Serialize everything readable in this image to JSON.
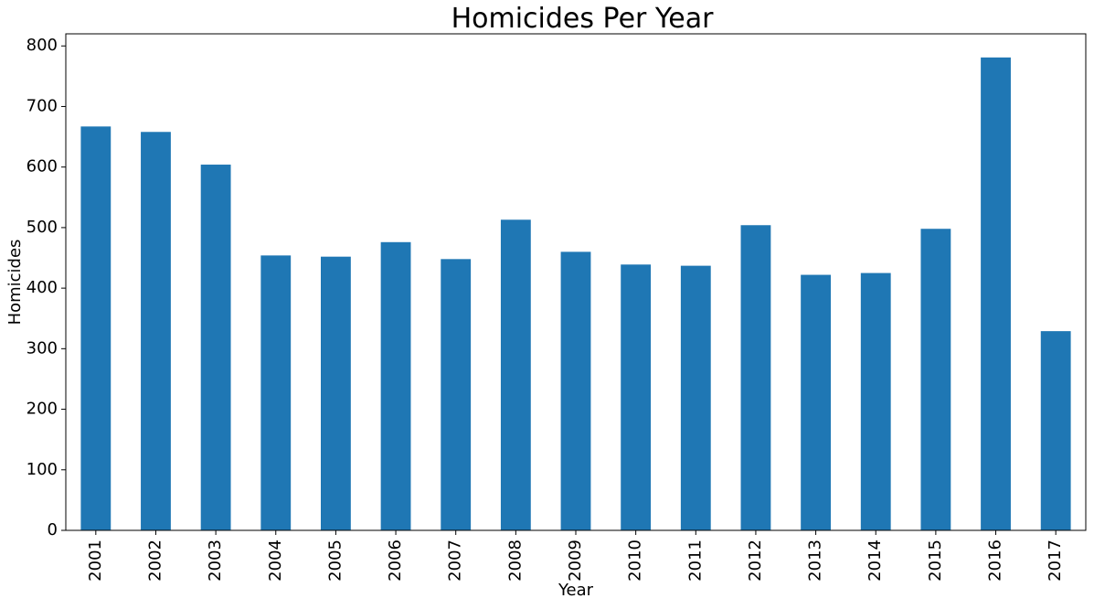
{
  "chart_data": {
    "type": "bar",
    "title": "Homicides Per Year",
    "xlabel": "Year",
    "ylabel": "Homicides",
    "categories": [
      "2001",
      "2002",
      "2003",
      "2004",
      "2005",
      "2006",
      "2007",
      "2008",
      "2009",
      "2010",
      "2011",
      "2012",
      "2013",
      "2014",
      "2015",
      "2016",
      "2017"
    ],
    "values": [
      667,
      658,
      604,
      454,
      452,
      476,
      448,
      513,
      460,
      439,
      437,
      504,
      422,
      425,
      498,
      781,
      329
    ],
    "ylim": [
      0,
      820
    ],
    "yticks": [
      0,
      100,
      200,
      300,
      400,
      500,
      600,
      700,
      800
    ],
    "bar_color": "#1f77b4",
    "grid": false,
    "legend": "none"
  }
}
